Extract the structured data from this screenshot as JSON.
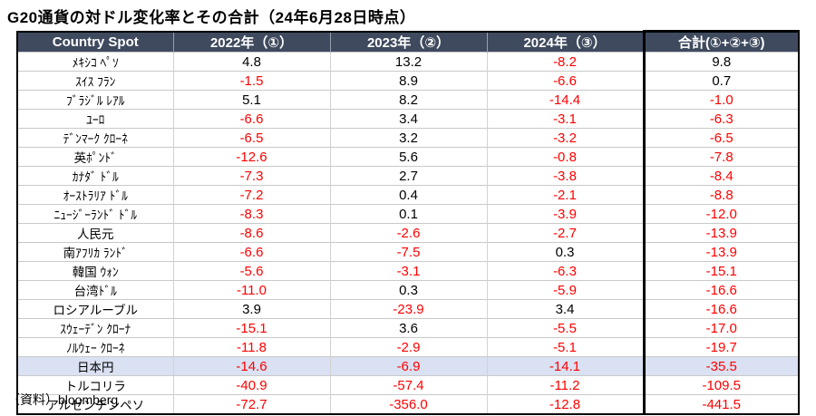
{
  "title": "G20通貨の対ドル変化率とその合計（24年6月28日時点）",
  "source_note": "（資料）bloomberg",
  "colors": {
    "header_bg": "#3F4A5E",
    "header_text": "#FFFFFF",
    "negative_value": "#FF0000",
    "positive_value": "#000000",
    "highlight_row_bg": "#D9E1F2",
    "outer_border": "#000000"
  },
  "chart_data": {
    "type": "table",
    "title": "G20通貨の対ドル変化率とその合計（24年6月28日時点）",
    "source": "（資料）bloomberg",
    "columns": [
      "Country Spot",
      "2022年（①）",
      "2023年（②）",
      "2024年（③）",
      "合計(①+②+③)"
    ],
    "notes": "Values are percent change vs USD; negative values shown in red; 日本円 row highlighted",
    "rows": [
      {
        "country": "ﾒｷｼｺ ﾍﾟｿ",
        "values": [
          "4.8",
          "13.2",
          "-8.2",
          "9.8"
        ],
        "highlight": false
      },
      {
        "country": "ｽｲｽ ﾌﾗﾝ",
        "values": [
          "-1.5",
          "8.9",
          "-6.6",
          "0.7"
        ],
        "highlight": false
      },
      {
        "country": "ﾌﾞﾗｼﾞﾙ ﾚｱﾙ",
        "values": [
          "5.1",
          "8.2",
          "-14.4",
          "-1.0"
        ],
        "highlight": false
      },
      {
        "country": "ﾕｰﾛ",
        "values": [
          "-6.6",
          "3.4",
          "-3.1",
          "-6.3"
        ],
        "highlight": false
      },
      {
        "country": "ﾃﾞﾝﾏｰｸ ｸﾛｰﾈ",
        "values": [
          "-6.5",
          "3.2",
          "-3.2",
          "-6.5"
        ],
        "highlight": false
      },
      {
        "country": "英ﾎﾟﾝﾄﾞ",
        "values": [
          "-12.6",
          "5.6",
          "-0.8",
          "-7.8"
        ],
        "highlight": false
      },
      {
        "country": "ｶﾅﾀﾞ ﾄﾞﾙ",
        "values": [
          "-7.3",
          "2.7",
          "-3.8",
          "-8.4"
        ],
        "highlight": false
      },
      {
        "country": "ｵｰｽﾄﾗﾘｱ ﾄﾞﾙ",
        "values": [
          "-7.2",
          "0.4",
          "-2.1",
          "-8.8"
        ],
        "highlight": false
      },
      {
        "country": "ﾆｭｰｼﾞｰﾗﾝﾄﾞ ﾄﾞﾙ",
        "values": [
          "-8.3",
          "0.1",
          "-3.9",
          "-12.0"
        ],
        "highlight": false
      },
      {
        "country": "人民元",
        "values": [
          "-8.6",
          "-2.6",
          "-2.7",
          "-13.9"
        ],
        "highlight": false
      },
      {
        "country": "南ｱﾌﾘｶ ﾗﾝﾄﾞ",
        "values": [
          "-6.6",
          "-7.5",
          "0.3",
          "-13.9"
        ],
        "highlight": false
      },
      {
        "country": "韓国 ｳｫﾝ",
        "values": [
          "-5.6",
          "-3.1",
          "-6.3",
          "-15.1"
        ],
        "highlight": false
      },
      {
        "country": "台湾ﾄﾞﾙ",
        "values": [
          "-11.0",
          "0.3",
          "-5.9",
          "-16.6"
        ],
        "highlight": false
      },
      {
        "country": "ロシアルーブル",
        "values": [
          "3.9",
          "-23.9",
          "3.4",
          "-16.6"
        ],
        "highlight": false
      },
      {
        "country": "ｽｳｪｰﾃﾞﾝ ｸﾛｰﾅ",
        "values": [
          "-15.1",
          "3.6",
          "-5.5",
          "-17.0"
        ],
        "highlight": false
      },
      {
        "country": "ﾉﾙｳｪｰ ｸﾛｰﾈ",
        "values": [
          "-11.8",
          "-2.9",
          "-5.1",
          "-19.7"
        ],
        "highlight": false
      },
      {
        "country": "日本円",
        "values": [
          "-14.6",
          "-6.9",
          "-14.1",
          "-35.5"
        ],
        "highlight": true
      },
      {
        "country": "トルコリラ",
        "values": [
          "-40.9",
          "-57.4",
          "-11.2",
          "-109.5"
        ],
        "highlight": false
      },
      {
        "country": "アルゼンチンペソ",
        "values": [
          "-72.7",
          "-356.0",
          "-12.8",
          "-441.5"
        ],
        "highlight": false
      }
    ]
  }
}
